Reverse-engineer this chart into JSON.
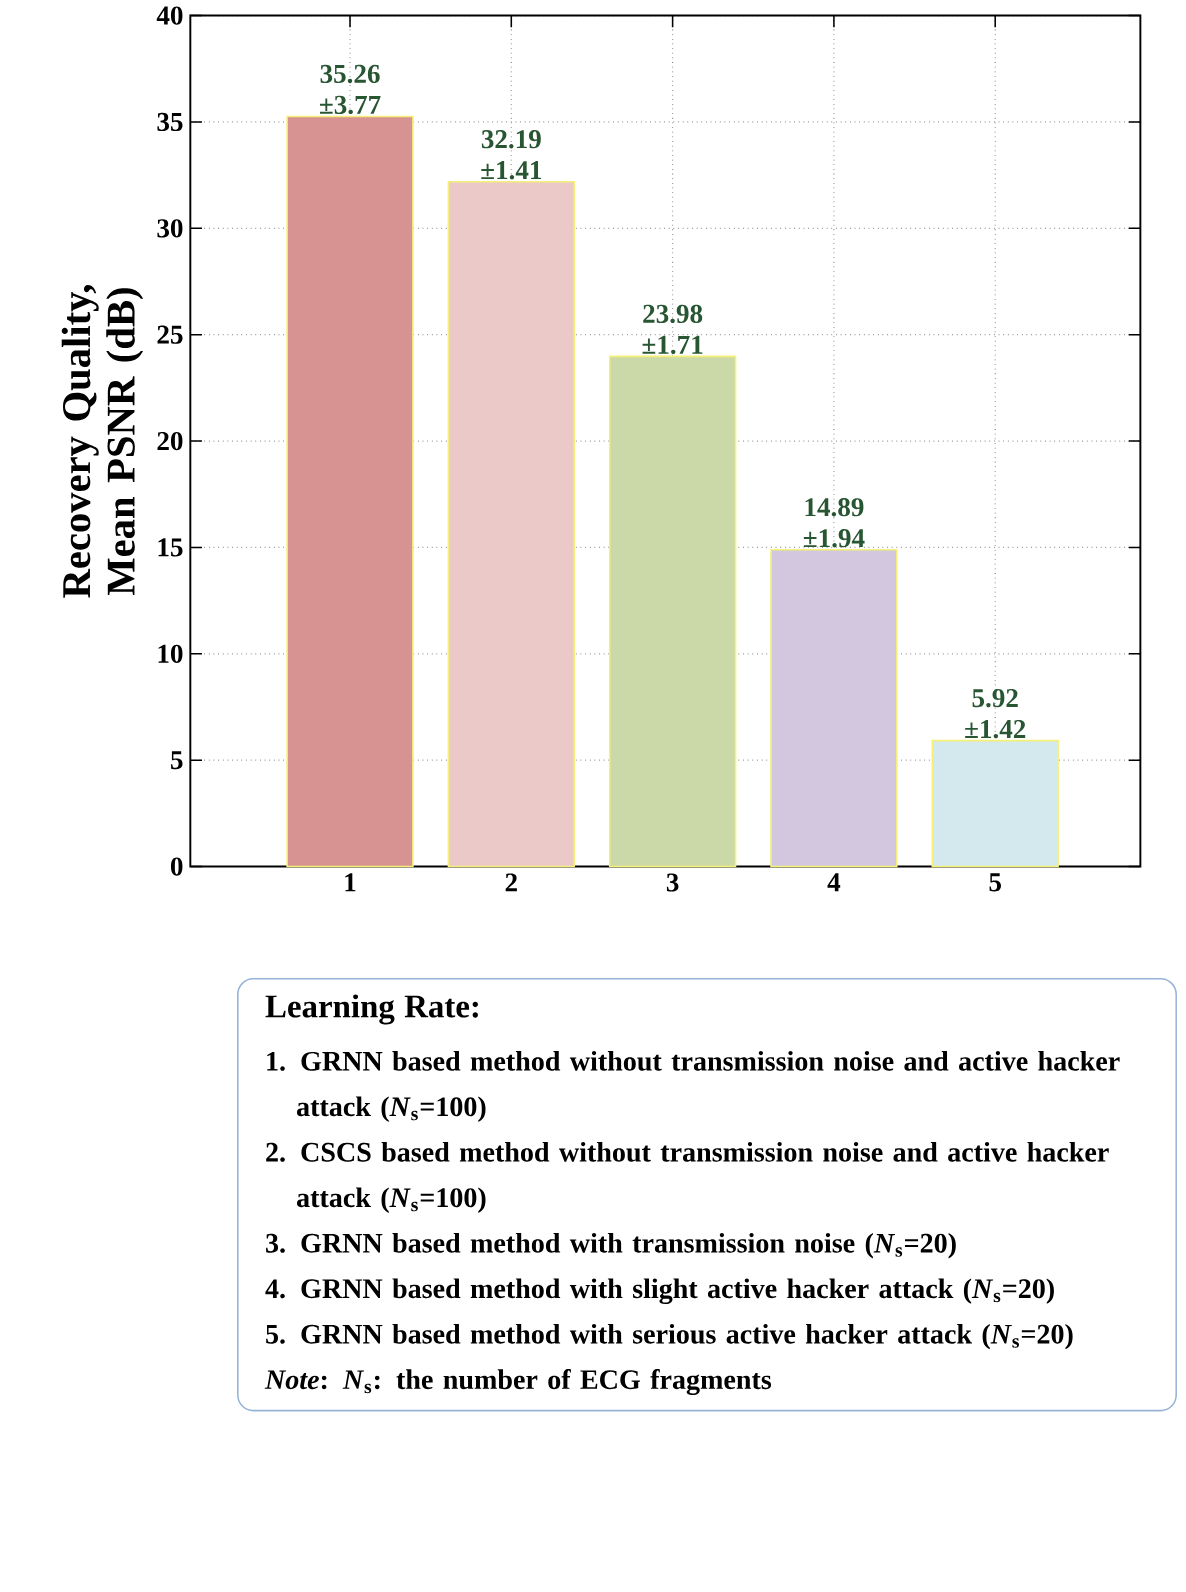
{
  "chart_data": {
    "type": "bar",
    "ylabel": "Recovery Quality, Mean PSNR (dB)",
    "categories": [
      "1",
      "2",
      "3",
      "4",
      "5"
    ],
    "values": [
      35.26,
      32.19,
      23.98,
      14.89,
      5.92
    ],
    "value_labels": [
      "35.26 ±3.77",
      "32.19 ±1.41",
      "23.98 ±1.71",
      "14.89 ±1.94",
      "5.92 ±1.42"
    ],
    "colors": [
      "#d69391",
      "#ebc9c8",
      "#cbd9a8",
      "#d2c7de",
      "#d3e9ee"
    ],
    "ylim": [
      0,
      40
    ],
    "yticks": [
      0,
      5,
      10,
      15,
      20,
      25,
      30,
      35,
      40
    ],
    "grid": true,
    "annotations": [
      "Learning Rate:",
      "1. GRNN based method without  transmission noise and active hacker attack (*N*$_{s}$=100)",
      "2. CSCS based method without  transmission noise and active hacker attack (*N*$_{s}$=100)",
      "3. GRNN based method with transmission noise (*N*$_{s}$=20)",
      "4. GRNN based method with slight active hacker attack (*N*$_{s}$=20)",
      "5. GRNN based method with serious active hacker attack (*N*$_{s}$=20)",
      "*Note*: *N*$_{s}$: the number of ECG fragments"
    ]
  }
}
